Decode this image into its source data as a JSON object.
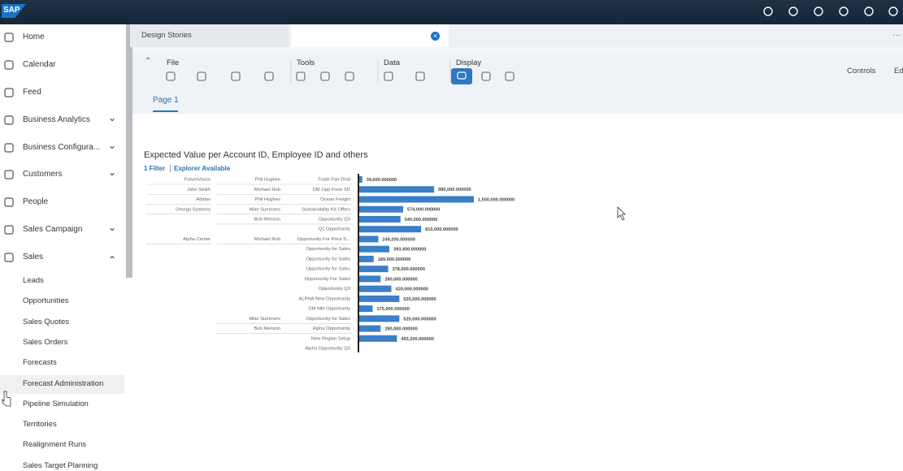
{
  "header": {
    "logo": "SAP"
  },
  "nav": {
    "items": [
      "Home",
      "Calendar",
      "Feed",
      "Business Analytics",
      "Business Configura...",
      "Customers",
      "People",
      "Sales Campaign",
      "Sales"
    ],
    "sub_items": [
      "Leads",
      "Opportunities",
      "Sales Quotes",
      "Sales Orders",
      "Forecasts",
      "Forecast Administration",
      "Pipeline Simulation",
      "Territories",
      "Realignment Runs",
      "Sales Target Planning"
    ]
  },
  "tabs": [
    "Design Stories"
  ],
  "toolbar": {
    "groups": [
      "File",
      "Tools",
      "Data",
      "Display"
    ],
    "right": [
      "Controls",
      "Ed"
    ]
  },
  "page_tab": "Page 1",
  "filter": "1 Filter",
  "explorer": "Explorer Available",
  "chart_data": {
    "type": "bar",
    "orientation": "horizontal",
    "title": "Expected Value per Account ID, Employee ID and others",
    "color": "#3a7fc8",
    "account_ids": [
      "FutureVision",
      "John Smith",
      "Adidas",
      "Omega Systems",
      null,
      null,
      "Alpha Center",
      null,
      null,
      null,
      null,
      null,
      null,
      null,
      null,
      null,
      null,
      null
    ],
    "employee_ids": [
      "Phil Hughes",
      "Michael Rob",
      "Phil Hughes",
      "Mike Summers",
      "Bob Menson",
      null,
      "Michael Rob",
      null,
      null,
      null,
      null,
      null,
      null,
      null,
      "Mike Summers",
      "Bob Menson",
      null,
      null
    ],
    "categories": [
      "Trade Fair Deal",
      "DM Opp From SD",
      "Ocean Freight",
      "Sustainability Kit Offers",
      "Opportunity Q3",
      "Q1 Opportunity",
      "Opportunity For Price S...",
      "Opportunity for Sales",
      "Opportunity for Sales",
      "Opportunity for Sales",
      "Opportunity For Sales",
      "Opportunity Q3",
      "ALPHA New Opportunity",
      "DM Mkt Opportunity",
      "Opportunity for Sales",
      "Alpha Opportunity",
      "New Region Setup",
      "Alpha Opportunity Q3"
    ],
    "values": [
      39600,
      980000,
      1500000,
      574000,
      540000,
      810000,
      249200,
      393400,
      189000,
      378000,
      280000,
      420000,
      525000,
      175000,
      525000,
      280000,
      493200,
      null
    ],
    "value_labels": [
      "39,600.000000",
      "980,000.000000",
      "1,500,000.000000",
      "574,000.000000",
      "540,000.000000",
      "810,000.000000",
      "249,200.000000",
      "393,400.000000",
      "189,000.000000",
      "378,000.000000",
      "280,000.000000",
      "420,000.000000",
      "525,000.000000",
      "175,000.000000",
      "525,000.000000",
      "280,000.000000",
      "493,200.000000",
      null
    ]
  }
}
